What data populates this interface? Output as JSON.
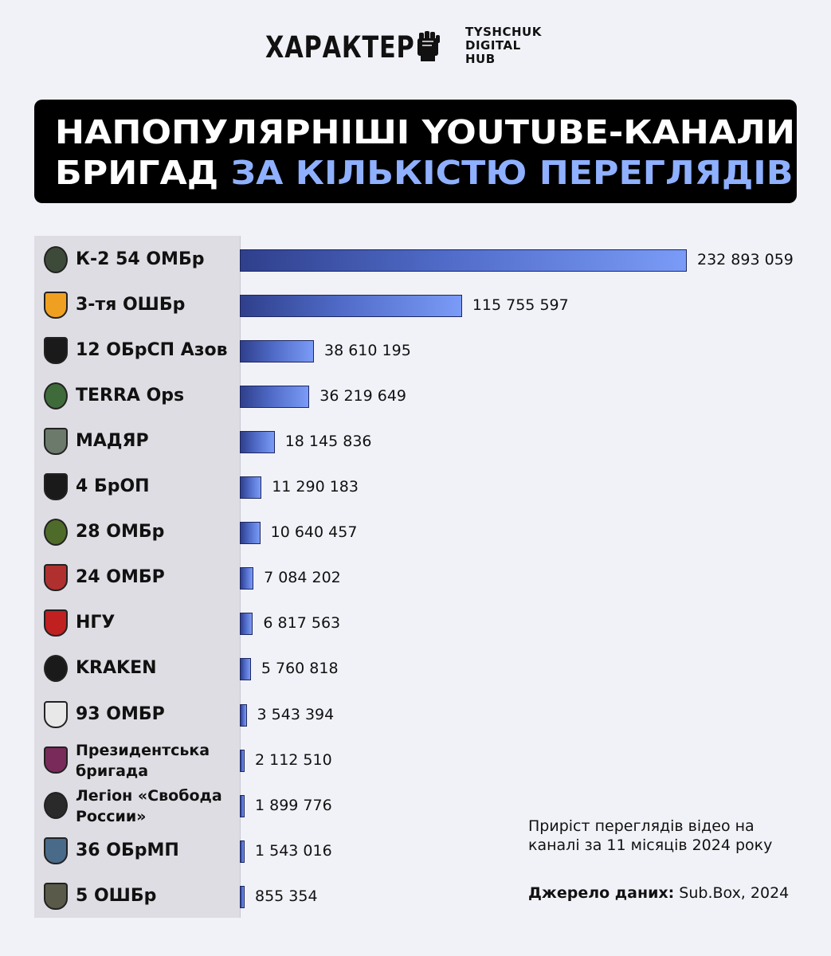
{
  "header": {
    "brand": "ХАРАКТЕР",
    "partner_line1": "TYSHCHUK",
    "partner_line2": "DIGITAL",
    "partner_line3": "HUB"
  },
  "title": {
    "line1": "НАПОПУЛЯРНІШІ YOUTUBE-КАНАЛИ",
    "line2_plain": "БРИГАД",
    "line2_accent": "ЗА КІЛЬКІСТЮ ПЕРЕГЛЯДІВ"
  },
  "colors": {
    "accent": "#8fb0ff",
    "bar_dark": "#2f3f8c",
    "bar_light": "#7a9bf7",
    "title_bg": "#000000",
    "page_bg": "#f1f2f8"
  },
  "chart_data": {
    "type": "bar",
    "orientation": "horizontal",
    "categories": [
      "К-2 54 ОМБр",
      "3-тя ОШБр",
      "12 ОБрСП Азов",
      "TERRA Ops",
      "МАДЯР",
      "4 БрОП",
      "28 ОМБр",
      "24 ОМБР",
      "НГУ",
      "KRAKEN",
      "93 ОМБР",
      "Президентська бригада",
      "Легіон «Свобода России»",
      "36 ОБрМП",
      "5 ОШБр"
    ],
    "values": [
      232893059,
      115755597,
      38610195,
      36219649,
      18145836,
      11290183,
      10640457,
      7084202,
      6817563,
      5760818,
      3543394,
      2112510,
      1899776,
      1543016,
      855354
    ],
    "value_labels": [
      "232 893 059",
      "115 755 597",
      "38 610 195",
      "36 219 649",
      "18 145 836",
      "11 290 183",
      "10 640 457",
      "7 084 202",
      "6 817 563",
      "5 760 818",
      "3 543 394",
      "2 112 510",
      "1 899 776",
      "1 543 016",
      "855 354"
    ],
    "label_lines": {
      "11": [
        "Президентська",
        "бригада"
      ],
      "12": [
        "Легіон «Свобода",
        "России»"
      ]
    },
    "emblems": [
      "k2-emblem-icon",
      "third-assault-emblem-icon",
      "azov-emblem-icon",
      "terra-emblem-icon",
      "madyar-emblem-icon",
      "fourth-brop-emblem-icon",
      "28-ombr-emblem-icon",
      "24-ombr-emblem-icon",
      "ngu-emblem-icon",
      "kraken-emblem-icon",
      "93-ombr-emblem-icon",
      "presidential-brigade-emblem-icon",
      "legion-emblem-icon",
      "36-obrmp-emblem-icon",
      "5-oshbr-emblem-icon"
    ],
    "xlim": [
      0,
      232893059
    ],
    "grid": false,
    "legend": "none"
  },
  "footer": {
    "note": "Приріст переглядів відео на каналі за 11 місяців 2024 року",
    "source_label": "Джерело даних:",
    "source_value": " Sub.Box, 2024"
  }
}
